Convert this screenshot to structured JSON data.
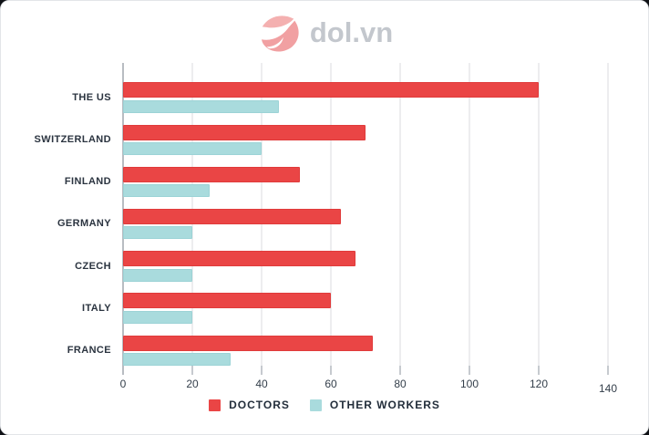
{
  "header": {
    "logo_text": "dol.vn"
  },
  "chart_data": {
    "type": "bar",
    "orientation": "horizontal",
    "title": "",
    "categories": [
      "THE US",
      "SWITZERLAND",
      "FINLAND",
      "GERMANY",
      "CZECH",
      "ITALY",
      "FRANCE"
    ],
    "series": [
      {
        "name": "DOCTORS",
        "color": "#ea4545",
        "values": [
          120,
          70,
          51,
          63,
          67,
          60,
          72
        ]
      },
      {
        "name": "OTHER WORKERS",
        "color": "#a9dbdd",
        "values": [
          45,
          40,
          25,
          20,
          20,
          20,
          31
        ]
      }
    ],
    "xlim": [
      0,
      140
    ],
    "xticks": [
      0,
      20,
      40,
      60,
      80,
      100,
      120,
      140
    ],
    "grid": "vertical",
    "legend_position": "bottom"
  },
  "colors": {
    "doctors": "#ea4545",
    "other_workers": "#a9dbdd",
    "logo_icon": "#f2a3a4",
    "logo_text": "#c3c7cd",
    "category_label": "#2b3440",
    "tick_label": "#333e4a",
    "gridline": "#ededef"
  }
}
